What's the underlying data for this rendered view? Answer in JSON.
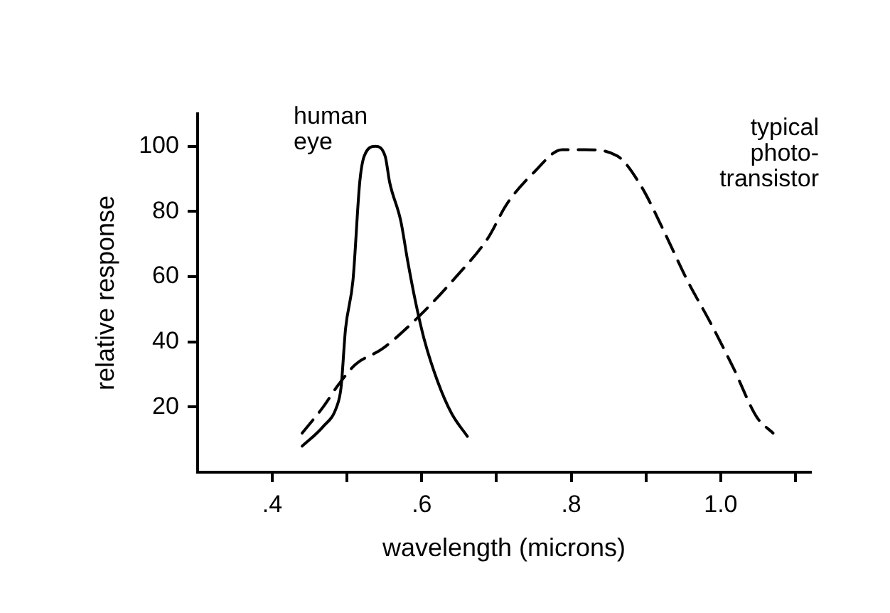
{
  "chart_data": {
    "type": "line",
    "xlabel": "wavelength (microns)",
    "ylabel": "relative response",
    "xlim": [
      0.3,
      1.12
    ],
    "ylim": [
      0,
      110
    ],
    "xticks": [
      {
        "value": 0.4,
        "label": ".4"
      },
      {
        "value": 0.5,
        "label": null
      },
      {
        "value": 0.6,
        "label": ".6"
      },
      {
        "value": 0.7,
        "label": null
      },
      {
        "value": 0.8,
        "label": ".8"
      },
      {
        "value": 0.9,
        "label": null
      },
      {
        "value": 1.0,
        "label": "1.0"
      },
      {
        "value": 1.1,
        "label": null
      }
    ],
    "yticks": [
      20,
      40,
      60,
      80,
      100
    ],
    "grid": false,
    "legend": false,
    "marker": "none",
    "series": [
      {
        "name": "human eye",
        "color": "#000000",
        "line_style": "solid",
        "x": [
          0.44,
          0.468,
          0.486,
          0.492,
          0.498,
          0.508,
          0.517,
          0.523,
          0.538,
          0.551,
          0.557,
          0.572,
          0.581,
          0.591,
          0.603,
          0.621,
          0.64,
          0.661
        ],
        "values": [
          8,
          14,
          20,
          26,
          44,
          59,
          89,
          97,
          100,
          97,
          89,
          77,
          65,
          53,
          41,
          28,
          18,
          11
        ]
      },
      {
        "name": "typical photo-transistor",
        "color": "#000000",
        "line_style": "dashed",
        "x": [
          0.44,
          0.468,
          0.489,
          0.511,
          0.548,
          0.597,
          0.646,
          0.689,
          0.713,
          0.75,
          0.788,
          0.819,
          0.862,
          0.893,
          0.924,
          0.955,
          0.986,
          1.017,
          1.048,
          1.07
        ],
        "values": [
          12,
          20,
          27,
          33,
          38,
          48,
          60,
          72,
          82,
          92,
          99,
          99,
          97,
          88,
          74,
          59,
          46,
          32,
          17,
          12
        ]
      }
    ]
  }
}
